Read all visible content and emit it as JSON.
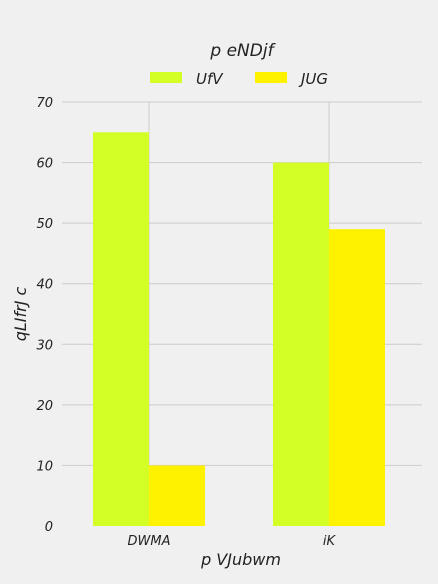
{
  "chart_data": {
    "type": "bar",
    "title": "p eNDjf",
    "xlabel": "p  VJubwm",
    "ylabel": "qLIfrJ c",
    "categories": [
      "DWMA",
      "iK"
    ],
    "series": [
      {
        "name": "UfV",
        "values": [
          65,
          60
        ],
        "color": "#d4ff26"
      },
      {
        "name": "JUG",
        "values": [
          10,
          49
        ],
        "color": "#fff200"
      }
    ],
    "ylim": [
      0,
      70
    ],
    "yticks": [
      0,
      10,
      20,
      30,
      40,
      50,
      60,
      70
    ],
    "grid": true,
    "legend": "top-center"
  }
}
